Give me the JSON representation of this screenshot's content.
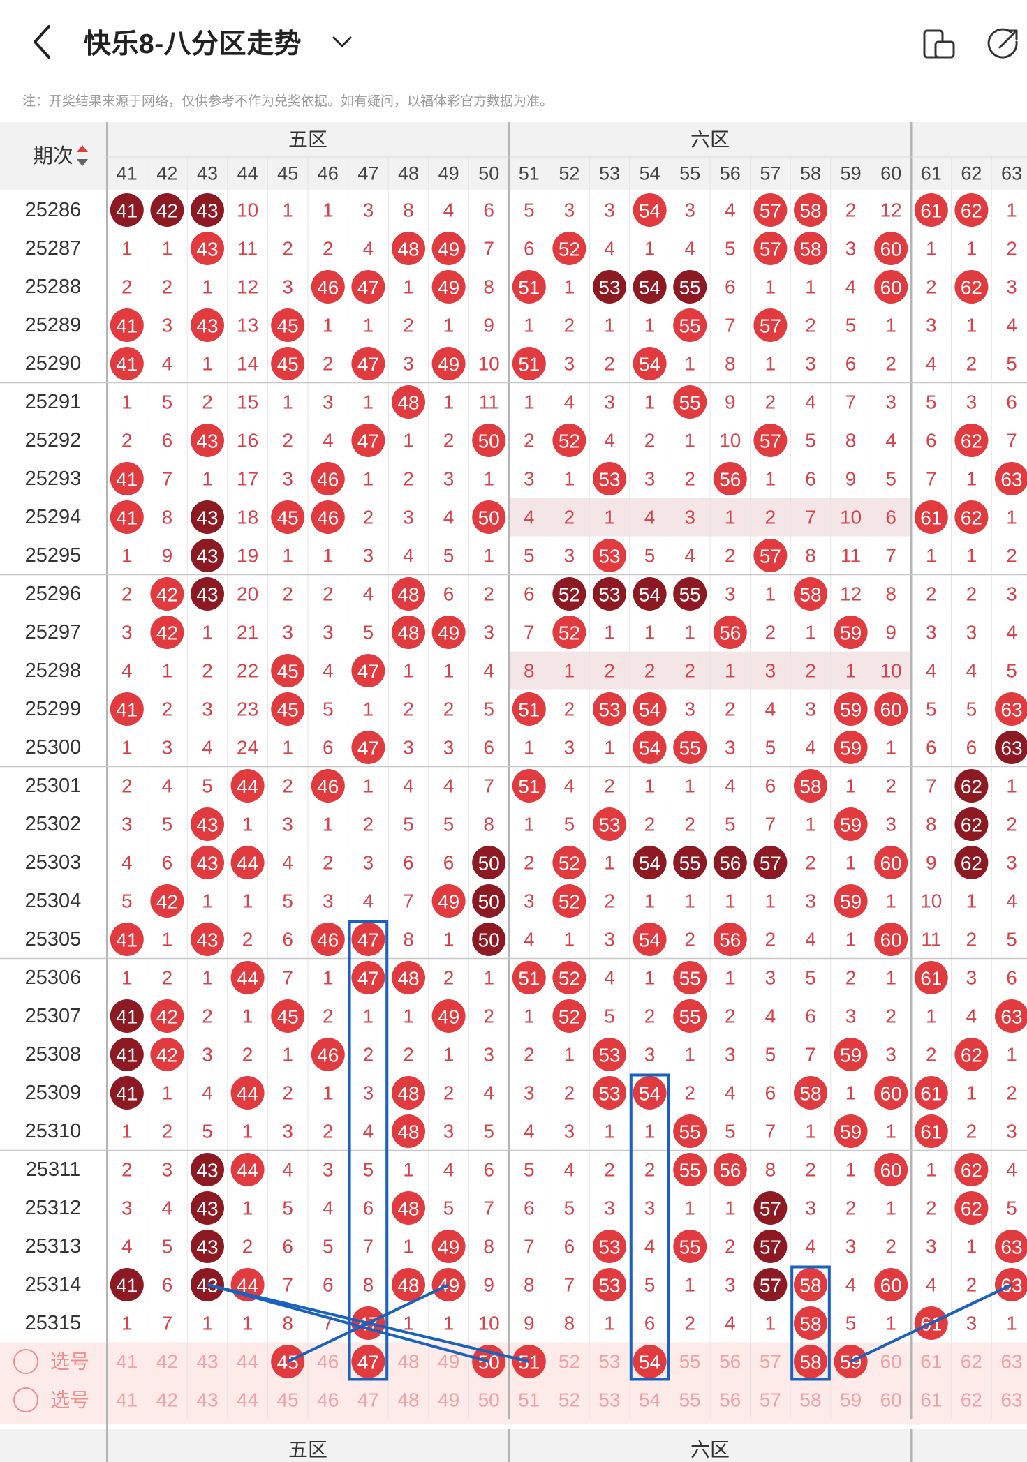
{
  "header": {
    "title": "快乐8-八分区走势",
    "note": "注：开奖结果来源于网络，仅供参考不作为兑奖依据。如有疑问，以福体彩官方数据为准。"
  },
  "table": {
    "period_header": "期次",
    "zones": [
      {
        "label": "五区",
        "cols": [
          41,
          42,
          43,
          44,
          45,
          46,
          47,
          48,
          49,
          50
        ]
      },
      {
        "label": "六区",
        "cols": [
          51,
          52,
          53,
          54,
          55,
          56,
          57,
          58,
          59,
          60
        ]
      },
      {
        "label": "",
        "cols": [
          61,
          62,
          63
        ]
      }
    ],
    "columns": [
      41,
      42,
      43,
      44,
      45,
      46,
      47,
      48,
      49,
      50,
      51,
      52,
      53,
      54,
      55,
      56,
      57,
      58,
      59,
      60,
      61,
      62,
      63
    ],
    "rows": [
      {
        "period": "25286",
        "v": [
          41,
          42,
          43,
          10,
          1,
          1,
          3,
          8,
          4,
          6,
          5,
          3,
          3,
          54,
          3,
          4,
          57,
          58,
          2,
          12,
          61,
          62,
          1
        ],
        "dark": [
          41,
          42,
          43
        ]
      },
      {
        "period": "25287",
        "v": [
          1,
          1,
          43,
          11,
          2,
          2,
          4,
          48,
          49,
          7,
          6,
          52,
          4,
          1,
          4,
          5,
          57,
          58,
          3,
          60,
          1,
          1,
          2
        ],
        "dark": []
      },
      {
        "period": "25288",
        "v": [
          2,
          2,
          1,
          12,
          3,
          46,
          47,
          1,
          49,
          8,
          51,
          1,
          53,
          54,
          55,
          6,
          1,
          1,
          4,
          60,
          2,
          62,
          3
        ],
        "dark": [
          53,
          54,
          55
        ]
      },
      {
        "period": "25289",
        "v": [
          41,
          3,
          43,
          13,
          45,
          1,
          1,
          2,
          1,
          9,
          1,
          2,
          1,
          1,
          55,
          7,
          57,
          2,
          5,
          1,
          3,
          1,
          4
        ],
        "dark": []
      },
      {
        "period": "25290",
        "v": [
          41,
          4,
          1,
          14,
          45,
          2,
          47,
          3,
          49,
          10,
          51,
          3,
          2,
          54,
          1,
          8,
          1,
          3,
          6,
          2,
          4,
          2,
          5
        ],
        "dark": []
      },
      {
        "period": "25291",
        "v": [
          1,
          5,
          2,
          15,
          1,
          3,
          1,
          48,
          1,
          11,
          1,
          4,
          3,
          1,
          55,
          9,
          2,
          4,
          7,
          3,
          5,
          3,
          6
        ],
        "dark": []
      },
      {
        "period": "25292",
        "v": [
          2,
          6,
          43,
          16,
          2,
          4,
          47,
          1,
          2,
          50,
          2,
          52,
          4,
          2,
          1,
          10,
          57,
          5,
          8,
          4,
          6,
          62,
          7
        ],
        "dark": []
      },
      {
        "period": "25293",
        "v": [
          41,
          7,
          1,
          17,
          3,
          46,
          1,
          2,
          3,
          1,
          3,
          1,
          53,
          3,
          2,
          56,
          1,
          6,
          9,
          5,
          7,
          1,
          63
        ],
        "dark": []
      },
      {
        "period": "25294",
        "v": [
          41,
          8,
          43,
          18,
          45,
          46,
          2,
          3,
          4,
          50,
          4,
          2,
          1,
          4,
          3,
          1,
          2,
          7,
          10,
          6,
          61,
          62,
          1
        ],
        "dark": [
          43
        ]
      },
      {
        "period": "25295",
        "v": [
          1,
          9,
          43,
          19,
          1,
          1,
          3,
          4,
          5,
          1,
          5,
          3,
          53,
          5,
          4,
          2,
          57,
          8,
          11,
          7,
          1,
          1,
          2
        ],
        "dark": [
          43
        ]
      },
      {
        "period": "25296",
        "v": [
          2,
          42,
          43,
          20,
          2,
          2,
          4,
          48,
          6,
          2,
          6,
          52,
          53,
          54,
          55,
          3,
          1,
          58,
          12,
          8,
          2,
          2,
          3
        ],
        "dark": [
          43,
          52,
          53,
          54,
          55
        ]
      },
      {
        "period": "25297",
        "v": [
          3,
          42,
          1,
          21,
          3,
          3,
          5,
          48,
          49,
          3,
          7,
          52,
          1,
          1,
          1,
          56,
          2,
          1,
          59,
          9,
          3,
          3,
          4
        ],
        "dark": []
      },
      {
        "period": "25298",
        "v": [
          4,
          1,
          2,
          22,
          45,
          4,
          47,
          1,
          1,
          4,
          8,
          1,
          2,
          2,
          2,
          1,
          3,
          2,
          1,
          10,
          4,
          4,
          5
        ],
        "dark": []
      },
      {
        "period": "25299",
        "v": [
          41,
          2,
          3,
          23,
          45,
          5,
          1,
          2,
          2,
          5,
          51,
          2,
          53,
          54,
          3,
          2,
          4,
          3,
          59,
          60,
          5,
          5,
          63
        ],
        "dark": []
      },
      {
        "period": "25300",
        "v": [
          1,
          3,
          4,
          24,
          1,
          6,
          47,
          3,
          3,
          6,
          1,
          3,
          1,
          54,
          55,
          3,
          5,
          4,
          59,
          1,
          6,
          6,
          63
        ],
        "dark": [
          63
        ]
      },
      {
        "period": "25301",
        "v": [
          2,
          4,
          5,
          44,
          2,
          46,
          1,
          4,
          4,
          7,
          51,
          4,
          2,
          1,
          1,
          4,
          6,
          58,
          1,
          2,
          7,
          62,
          1
        ],
        "dark": [
          62
        ]
      },
      {
        "period": "25302",
        "v": [
          3,
          5,
          43,
          1,
          3,
          1,
          2,
          5,
          5,
          8,
          1,
          5,
          53,
          2,
          2,
          5,
          7,
          1,
          59,
          3,
          8,
          62,
          2
        ],
        "dark": [
          62
        ]
      },
      {
        "period": "25303",
        "v": [
          4,
          6,
          43,
          44,
          4,
          2,
          3,
          6,
          6,
          50,
          2,
          52,
          1,
          54,
          55,
          56,
          57,
          2,
          1,
          60,
          9,
          62,
          3
        ],
        "dark": [
          50,
          54,
          55,
          56,
          57,
          62
        ]
      },
      {
        "period": "25304",
        "v": [
          5,
          42,
          1,
          1,
          5,
          3,
          4,
          7,
          49,
          50,
          3,
          52,
          2,
          1,
          1,
          1,
          1,
          3,
          59,
          1,
          10,
          1,
          4
        ],
        "dark": [
          50
        ]
      },
      {
        "period": "25305",
        "v": [
          41,
          1,
          43,
          2,
          6,
          46,
          47,
          8,
          1,
          50,
          4,
          1,
          3,
          54,
          2,
          56,
          2,
          4,
          1,
          60,
          11,
          2,
          5
        ],
        "dark": [
          50
        ]
      },
      {
        "period": "25306",
        "v": [
          1,
          2,
          1,
          44,
          7,
          1,
          47,
          48,
          2,
          1,
          51,
          52,
          4,
          1,
          55,
          1,
          3,
          5,
          2,
          1,
          61,
          3,
          6
        ],
        "dark": []
      },
      {
        "period": "25307",
        "v": [
          41,
          42,
          2,
          1,
          45,
          2,
          1,
          1,
          49,
          2,
          1,
          52,
          5,
          2,
          55,
          2,
          4,
          6,
          3,
          2,
          1,
          4,
          63
        ],
        "dark": [
          41
        ]
      },
      {
        "period": "25308",
        "v": [
          41,
          42,
          3,
          2,
          1,
          46,
          2,
          2,
          1,
          3,
          2,
          1,
          53,
          3,
          1,
          3,
          5,
          7,
          59,
          3,
          2,
          62,
          1
        ],
        "dark": [
          41
        ]
      },
      {
        "period": "25309",
        "v": [
          41,
          1,
          4,
          44,
          2,
          1,
          3,
          48,
          2,
          4,
          3,
          2,
          53,
          54,
          2,
          4,
          6,
          58,
          1,
          60,
          61,
          1,
          2
        ],
        "dark": [
          41
        ]
      },
      {
        "period": "25310",
        "v": [
          1,
          2,
          5,
          1,
          3,
          2,
          4,
          48,
          3,
          5,
          4,
          3,
          1,
          1,
          55,
          5,
          7,
          1,
          59,
          1,
          61,
          2,
          3
        ],
        "dark": []
      },
      {
        "period": "25311",
        "v": [
          2,
          3,
          43,
          44,
          4,
          3,
          5,
          1,
          4,
          6,
          5,
          4,
          2,
          2,
          55,
          56,
          8,
          2,
          1,
          60,
          1,
          62,
          4
        ],
        "dark": [
          43
        ]
      },
      {
        "period": "25312",
        "v": [
          3,
          4,
          43,
          1,
          5,
          4,
          6,
          48,
          5,
          7,
          6,
          5,
          3,
          3,
          1,
          1,
          57,
          3,
          2,
          1,
          2,
          62,
          5
        ],
        "dark": [
          43,
          57
        ]
      },
      {
        "period": "25313",
        "v": [
          4,
          5,
          43,
          2,
          6,
          5,
          7,
          1,
          49,
          8,
          7,
          6,
          53,
          4,
          55,
          2,
          57,
          4,
          3,
          2,
          3,
          1,
          63
        ],
        "dark": [
          43,
          57
        ]
      },
      {
        "period": "25314",
        "v": [
          41,
          6,
          43,
          44,
          7,
          6,
          8,
          48,
          49,
          9,
          8,
          7,
          53,
          5,
          1,
          3,
          57,
          58,
          4,
          60,
          4,
          2,
          63
        ],
        "dark": [
          41,
          43,
          57
        ]
      },
      {
        "period": "25315",
        "v": [
          1,
          7,
          1,
          1,
          8,
          7,
          47,
          1,
          1,
          10,
          9,
          8,
          1,
          6,
          2,
          4,
          1,
          58,
          5,
          1,
          61,
          3,
          1
        ],
        "dark": []
      }
    ],
    "select_rows": [
      {
        "label": "选号",
        "picked": [
          45,
          47,
          50,
          51,
          54,
          58,
          59
        ]
      },
      {
        "label": "选号",
        "picked": []
      }
    ],
    "footer_period": "-"
  },
  "colors": {
    "red": "#e13a3f",
    "dark_red": "#8d1a22",
    "miss_text": "#d7424a",
    "faded_text": "#f1a0a3",
    "select_bg": "#fdebea",
    "line_blue": "#1a62bd",
    "separator": "#b4b4b4"
  }
}
